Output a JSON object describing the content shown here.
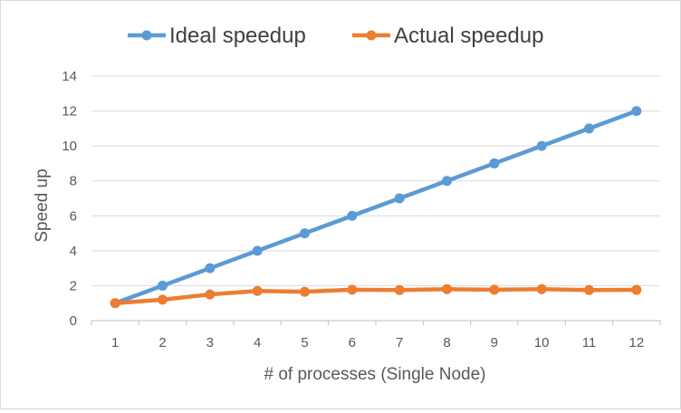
{
  "chart_data": {
    "type": "line",
    "title": "",
    "xlabel": "# of processes (Single Node)",
    "ylabel": "Speed up",
    "categories": [
      "1",
      "2",
      "3",
      "4",
      "5",
      "6",
      "7",
      "8",
      "9",
      "10",
      "11",
      "12"
    ],
    "ylim": [
      0,
      14
    ],
    "yticks": [
      0,
      2,
      4,
      6,
      8,
      10,
      12,
      14
    ],
    "grid": true,
    "legend_position": "top",
    "series": [
      {
        "name": "Ideal speedup",
        "color": "#5b9bd5",
        "values": [
          1,
          2,
          3,
          4,
          5,
          6,
          7,
          8,
          9,
          10,
          11,
          12
        ]
      },
      {
        "name": "Actual speedup",
        "color": "#ed7d31",
        "values": [
          1,
          1.2,
          1.5,
          1.7,
          1.65,
          1.77,
          1.75,
          1.8,
          1.77,
          1.8,
          1.75,
          1.76
        ]
      }
    ]
  }
}
